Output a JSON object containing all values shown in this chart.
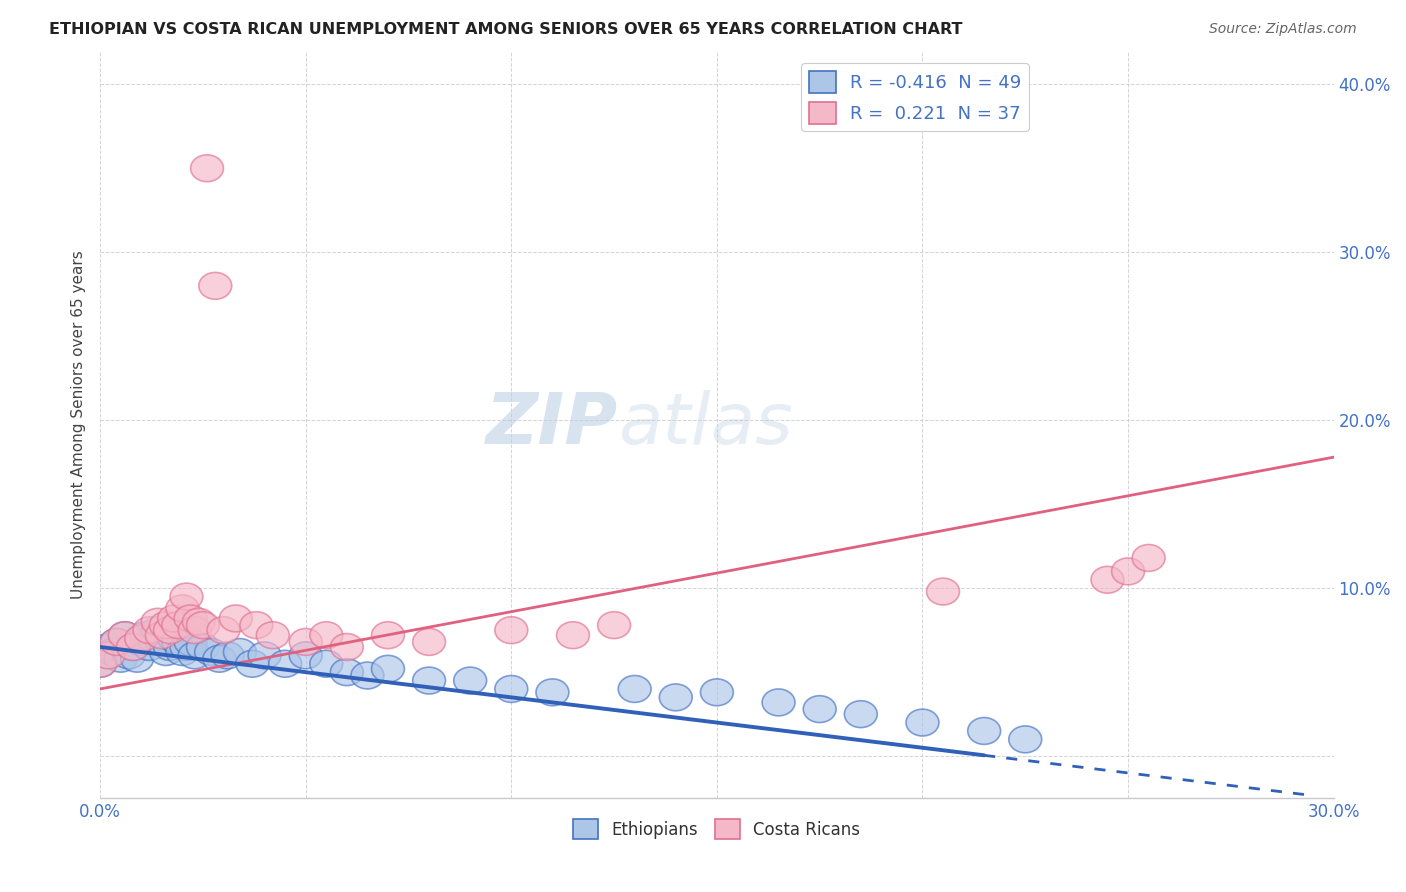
{
  "title": "ETHIOPIAN VS COSTA RICAN UNEMPLOYMENT AMONG SENIORS OVER 65 YEARS CORRELATION CHART",
  "source": "Source: ZipAtlas.com",
  "ylabel": "Unemployment Among Seniors over 65 years",
  "xlim": [
    0.0,
    0.3
  ],
  "ylim": [
    -0.025,
    0.42
  ],
  "xtick_vals": [
    0.0,
    0.05,
    0.1,
    0.15,
    0.2,
    0.25,
    0.3
  ],
  "xticklabels": [
    "0.0%",
    "",
    "",
    "",
    "",
    "",
    "30.0%"
  ],
  "ytick_vals": [
    0.0,
    0.1,
    0.2,
    0.3,
    0.4
  ],
  "yticklabels": [
    "",
    "10.0%",
    "20.0%",
    "30.0%",
    "40.0%"
  ],
  "ethiopian_R": -0.416,
  "ethiopian_N": 49,
  "costarican_R": 0.221,
  "costarican_N": 37,
  "ethiopian_color": "#adc6e8",
  "costarican_color": "#f5b8c8",
  "ethiopian_edge_color": "#4472c4",
  "costarican_edge_color": "#e07090",
  "ethiopian_line_color": "#3060b8",
  "costarican_line_color": "#e06080",
  "watermark_color": "#d0e0f0",
  "grid_color": "#c8c8d0",
  "tick_color": "#4472c4",
  "title_color": "#222222",
  "source_color": "#666666",
  "ylabel_color": "#444444",
  "eth_x": [
    0.0,
    0.002,
    0.003,
    0.004,
    0.005,
    0.006,
    0.007,
    0.008,
    0.009,
    0.01,
    0.011,
    0.012,
    0.013,
    0.014,
    0.015,
    0.016,
    0.017,
    0.018,
    0.019,
    0.02,
    0.021,
    0.022,
    0.023,
    0.025,
    0.027,
    0.029,
    0.031,
    0.034,
    0.037,
    0.04,
    0.045,
    0.05,
    0.055,
    0.06,
    0.065,
    0.07,
    0.08,
    0.09,
    0.1,
    0.11,
    0.13,
    0.14,
    0.15,
    0.165,
    0.175,
    0.185,
    0.2,
    0.215,
    0.225
  ],
  "eth_y": [
    0.055,
    0.065,
    0.062,
    0.068,
    0.058,
    0.072,
    0.06,
    0.065,
    0.058,
    0.068,
    0.072,
    0.065,
    0.07,
    0.075,
    0.068,
    0.062,
    0.065,
    0.07,
    0.068,
    0.062,
    0.065,
    0.068,
    0.06,
    0.065,
    0.062,
    0.058,
    0.06,
    0.062,
    0.055,
    0.06,
    0.055,
    0.06,
    0.055,
    0.05,
    0.048,
    0.052,
    0.045,
    0.045,
    0.04,
    0.038,
    0.04,
    0.035,
    0.038,
    0.032,
    0.028,
    0.025,
    0.02,
    0.015,
    0.01
  ],
  "cr_x": [
    0.0,
    0.002,
    0.004,
    0.006,
    0.008,
    0.01,
    0.012,
    0.014,
    0.015,
    0.016,
    0.017,
    0.018,
    0.019,
    0.02,
    0.021,
    0.022,
    0.023,
    0.024,
    0.025,
    0.026,
    0.028,
    0.03,
    0.033,
    0.038,
    0.042,
    0.05,
    0.055,
    0.06,
    0.07,
    0.08,
    0.1,
    0.115,
    0.125,
    0.205,
    0.245,
    0.25,
    0.255
  ],
  "cr_y": [
    0.055,
    0.06,
    0.068,
    0.072,
    0.065,
    0.07,
    0.075,
    0.08,
    0.072,
    0.078,
    0.075,
    0.082,
    0.078,
    0.088,
    0.095,
    0.082,
    0.075,
    0.08,
    0.078,
    0.35,
    0.28,
    0.075,
    0.082,
    0.078,
    0.072,
    0.068,
    0.072,
    0.065,
    0.072,
    0.068,
    0.075,
    0.072,
    0.078,
    0.098,
    0.105,
    0.11,
    0.118
  ]
}
